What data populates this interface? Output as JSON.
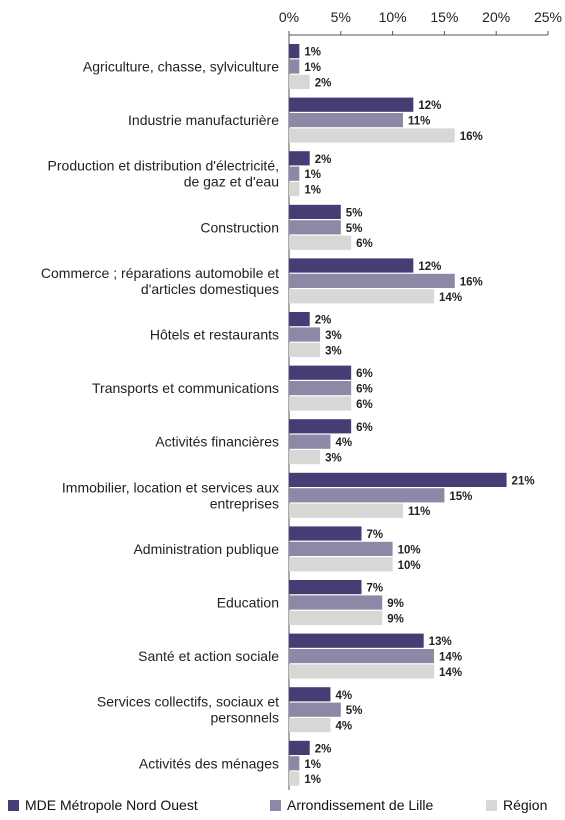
{
  "chart_data": {
    "type": "bar",
    "orientation": "horizontal",
    "xlim": [
      0,
      25
    ],
    "x_ticks": [
      "0%",
      "5%",
      "10%",
      "15%",
      "20%",
      "25%"
    ],
    "x_axis_position": "top",
    "grid": false,
    "legend_position": "bottom",
    "categories": [
      [
        "Agriculture, chasse, sylviculture"
      ],
      [
        "Industrie manufacturière"
      ],
      [
        "Production et distribution d'électricité,",
        "de gaz et d'eau"
      ],
      [
        "Construction"
      ],
      [
        "Commerce ; réparations automobile et",
        "d'articles domestiques"
      ],
      [
        "Hôtels et restaurants"
      ],
      [
        "Transports et communications"
      ],
      [
        "Activités financières"
      ],
      [
        "Immobilier, location et services aux",
        "entreprises"
      ],
      [
        "Administration publique"
      ],
      [
        "Education"
      ],
      [
        "Santé et action sociale"
      ],
      [
        "Services collectifs, sociaux et",
        "personnels"
      ],
      [
        "Activités des ménages"
      ]
    ],
    "series": [
      {
        "name": "MDE Métropole Nord Ouest",
        "color": "#453e74",
        "values": [
          1,
          12,
          2,
          5,
          12,
          2,
          6,
          6,
          21,
          7,
          7,
          13,
          4,
          2
        ]
      },
      {
        "name": "Arrondissement de Lille",
        "color": "#8e87a6",
        "values": [
          1,
          11,
          1,
          5,
          16,
          3,
          6,
          4,
          15,
          10,
          9,
          14,
          5,
          1
        ]
      },
      {
        "name": "Région",
        "color": "#d9d6d6",
        "values": [
          2,
          16,
          1,
          6,
          14,
          3,
          6,
          3,
          11,
          10,
          9,
          14,
          4,
          1
        ]
      }
    ],
    "value_suffix": "%"
  },
  "legend": [
    {
      "label": "MDE Métropole Nord Ouest",
      "color": "#453e74"
    },
    {
      "label": "Arrondissement de Lille",
      "color": "#8e87a6"
    },
    {
      "label": "Région",
      "color": "#d9d6d6"
    }
  ]
}
